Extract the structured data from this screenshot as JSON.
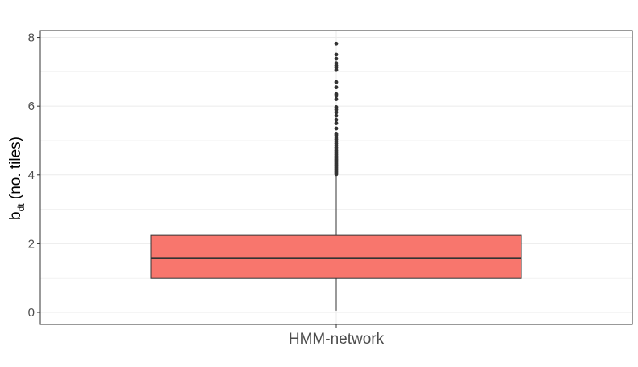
{
  "chart_data": {
    "type": "boxplot",
    "title": "",
    "xlabel": "",
    "ylabel": {
      "main": "b",
      "subscript": "dt",
      "suffix": " (no. tiles)"
    },
    "categories": [
      "HMM-network"
    ],
    "ylim": [
      -0.35,
      8.2
    ],
    "y_ticks": [
      0,
      2,
      4,
      6,
      8
    ],
    "y_tick_labels": [
      "0",
      "2",
      "4",
      "6",
      "8"
    ],
    "grid": true,
    "legend": "none",
    "boxes": [
      {
        "category": "HMM-network",
        "lower_whisker": 0.05,
        "q1": 1.0,
        "median": 1.58,
        "q3": 2.24,
        "upper_whisker": 4.0,
        "fill_color": "#F8766D",
        "outliers": [
          4.02,
          4.06,
          4.1,
          4.14,
          4.18,
          4.22,
          4.26,
          4.3,
          4.34,
          4.38,
          4.42,
          4.46,
          4.5,
          4.55,
          4.6,
          4.65,
          4.7,
          4.75,
          4.8,
          4.86,
          4.92,
          4.98,
          5.04,
          5.1,
          5.16,
          5.2,
          5.35,
          5.5,
          5.6,
          5.72,
          5.82,
          5.9,
          5.97,
          6.2,
          6.3,
          6.35,
          6.55,
          6.7,
          7.05,
          7.12,
          7.18,
          7.25,
          7.38,
          7.5,
          7.82
        ]
      }
    ],
    "colors": {
      "box_fill": "#F8766D",
      "box_line": "#333333",
      "outlier": "#333333",
      "grid": "#ebebeb",
      "panel_border": "#333333"
    }
  }
}
